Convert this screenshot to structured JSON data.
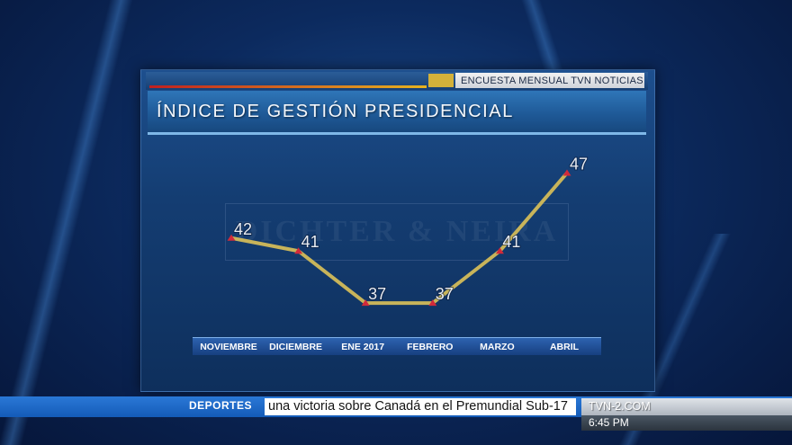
{
  "header": {
    "survey_label": "ENCUESTA MENSUAL TVN NOTICIAS",
    "title": "ÍNDICE DE GESTIÓN PRESIDENCIAL"
  },
  "watermark_text": "DICHTER & NEIRA",
  "colors": {
    "line": "#c8b45a",
    "marker": "#d12a3a",
    "label": "#e8ecf2",
    "accent_gold": "#d3b13a"
  },
  "chart_data": {
    "type": "line",
    "categories": [
      "NOVIEMBRE",
      "DICIEMBRE",
      "ENE 2017",
      "FEBRERO",
      "MARZO",
      "ABRIL"
    ],
    "series": [
      {
        "values": [
          42,
          41,
          37,
          37,
          41,
          47
        ]
      }
    ],
    "title": "ÍNDICE DE GESTIÓN PRESIDENCIAL",
    "ylim": [
      35,
      48
    ],
    "grid": false,
    "data_labels": true
  },
  "ticker": {
    "section": "DEPORTES",
    "headline": "una victoria sobre Canadá en el Premundial Sub-17",
    "site": "TVN-2.COM",
    "time": "6:45 PM"
  }
}
